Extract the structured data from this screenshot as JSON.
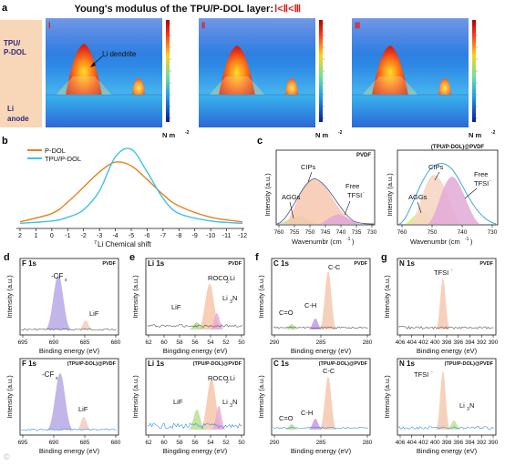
{
  "panel_letters": {
    "a": "a",
    "b": "b",
    "c": "c",
    "d": "d",
    "e": "e",
    "f": "f",
    "g": "g"
  },
  "a": {
    "title": "Young's modulus of the TPU/P-DOL layer: ",
    "title_rank": "Ⅰ<Ⅱ<Ⅲ",
    "row1": "TPU/",
    "row1b": "P-DOL",
    "row2": "Li",
    "row2b": "anode",
    "roman": [
      "Ⅰ",
      "Ⅱ",
      "Ⅲ"
    ],
    "dendrite_label": "Li dendrite",
    "unit": "N m",
    "unit_exp": "-2"
  },
  "b": {
    "legend": [
      "P-DOL",
      "TPU/P-DOL"
    ],
    "xlabel_sup": "7",
    "xlabel": "Li Chemical shift",
    "xticks": [
      "2",
      "1",
      "0",
      "-1",
      "-2",
      "-3",
      "-4",
      "-5",
      "-6",
      "-7",
      "-8",
      "-9",
      "-10",
      "-11",
      "-12"
    ]
  },
  "c": {
    "ylabel": "Intensity (a.u.)",
    "xlabel": "Wavenumbr (cm",
    "xlabel_exp": "-1",
    "left_title": "PVDF",
    "right_title": "(TPU/P-DOL)@PVDF",
    "left_ticks": [
      "760",
      "755",
      "750",
      "745",
      "740",
      "735",
      "730"
    ],
    "right_ticks": [
      "760",
      "750",
      "740",
      "730"
    ],
    "aggs": "AGGs",
    "cips": "CIPs",
    "free": "Free",
    "tfsi": "TFSI",
    "tfsi_sup": "-"
  },
  "xps": {
    "ylabel": "Intensity (a.u.)",
    "xlabel": "Binding energy (eV)",
    "xlabel_e": "Bingding energy (eV)",
    "tag_pvdf": "PVDF",
    "tag_tpu": "(TPU/P-DOL)@PVDF",
    "d_title": "F 1s",
    "d_ticks": [
      "695",
      "690",
      "685",
      "680"
    ],
    "d_cf": "-CF",
    "d_cf_sub": "x",
    "d_lif": "LiF",
    "e_title": "Li 1s",
    "e_ticks": [
      "62",
      "60",
      "58",
      "56",
      "54",
      "52",
      "50"
    ],
    "e_roco": "ROCO",
    "e_roco_sub": "2",
    "e_roco_end": "Li",
    "e_lif": "LiF",
    "e_li3n": "Li",
    "e_li3n_sub": "3",
    "e_li3n_end": "N",
    "f_title": "C 1s",
    "f_ticks": [
      "290",
      "285",
      "280"
    ],
    "f_cc": "C-C",
    "f_ch": "C-H",
    "f_co": "C=O",
    "g_title": "N 1s",
    "g_ticks": [
      "406",
      "404",
      "402",
      "400",
      "398",
      "396",
      "394",
      "392",
      "390"
    ],
    "g_tfsi": "TFSI",
    "g_tfsi_sup": "-",
    "g_li3n": "Li",
    "g_li3n_sub": "3",
    "g_li3n_end": "N"
  },
  "watermark": "©",
  "colors": {
    "orange": "#e8801e",
    "cyan": "#3cc3e6",
    "red": "#e02020",
    "navy": "#1a1a1a"
  },
  "chart_data": [
    {
      "type": "line",
      "panel": "b",
      "xlabel": "7Li Chemical shift",
      "xlim": [
        2,
        -12
      ],
      "series": [
        {
          "name": "P-DOL",
          "x": [
            2,
            0,
            -1,
            -2,
            -3,
            -4,
            -5,
            -6,
            -7,
            -8,
            -10,
            -12
          ],
          "values": [
            0.04,
            0.15,
            0.3,
            0.5,
            0.7,
            0.83,
            0.78,
            0.6,
            0.4,
            0.25,
            0.1,
            0.04
          ]
        },
        {
          "name": "TPU/P-DOL",
          "x": [
            2,
            0,
            -1,
            -2,
            -3,
            -4,
            -5,
            -6,
            -7,
            -8,
            -10,
            -12
          ],
          "values": [
            0.02,
            0.05,
            0.1,
            0.2,
            0.45,
            0.9,
            1.0,
            0.7,
            0.35,
            0.15,
            0.05,
            0.02
          ]
        }
      ]
    },
    {
      "type": "area",
      "panel": "c",
      "xlabel": "Wavenumbr (cm-1)",
      "xlim": [
        760,
        730
      ],
      "series": [
        {
          "name": "AGGs",
          "x": [
            756,
            750,
            746,
            742
          ],
          "values": [
            0.0,
            0.12,
            0.08,
            0.0
          ]
        },
        {
          "name": "CIPs",
          "x": [
            752,
            748,
            745,
            742,
            738
          ],
          "values": [
            0.1,
            0.7,
            0.9,
            0.7,
            0.1
          ]
        },
        {
          "name": "Free TFSI-",
          "x": [
            744,
            741,
            739,
            736
          ],
          "values": [
            0.0,
            0.15,
            0.12,
            0.0
          ]
        }
      ]
    }
  ]
}
